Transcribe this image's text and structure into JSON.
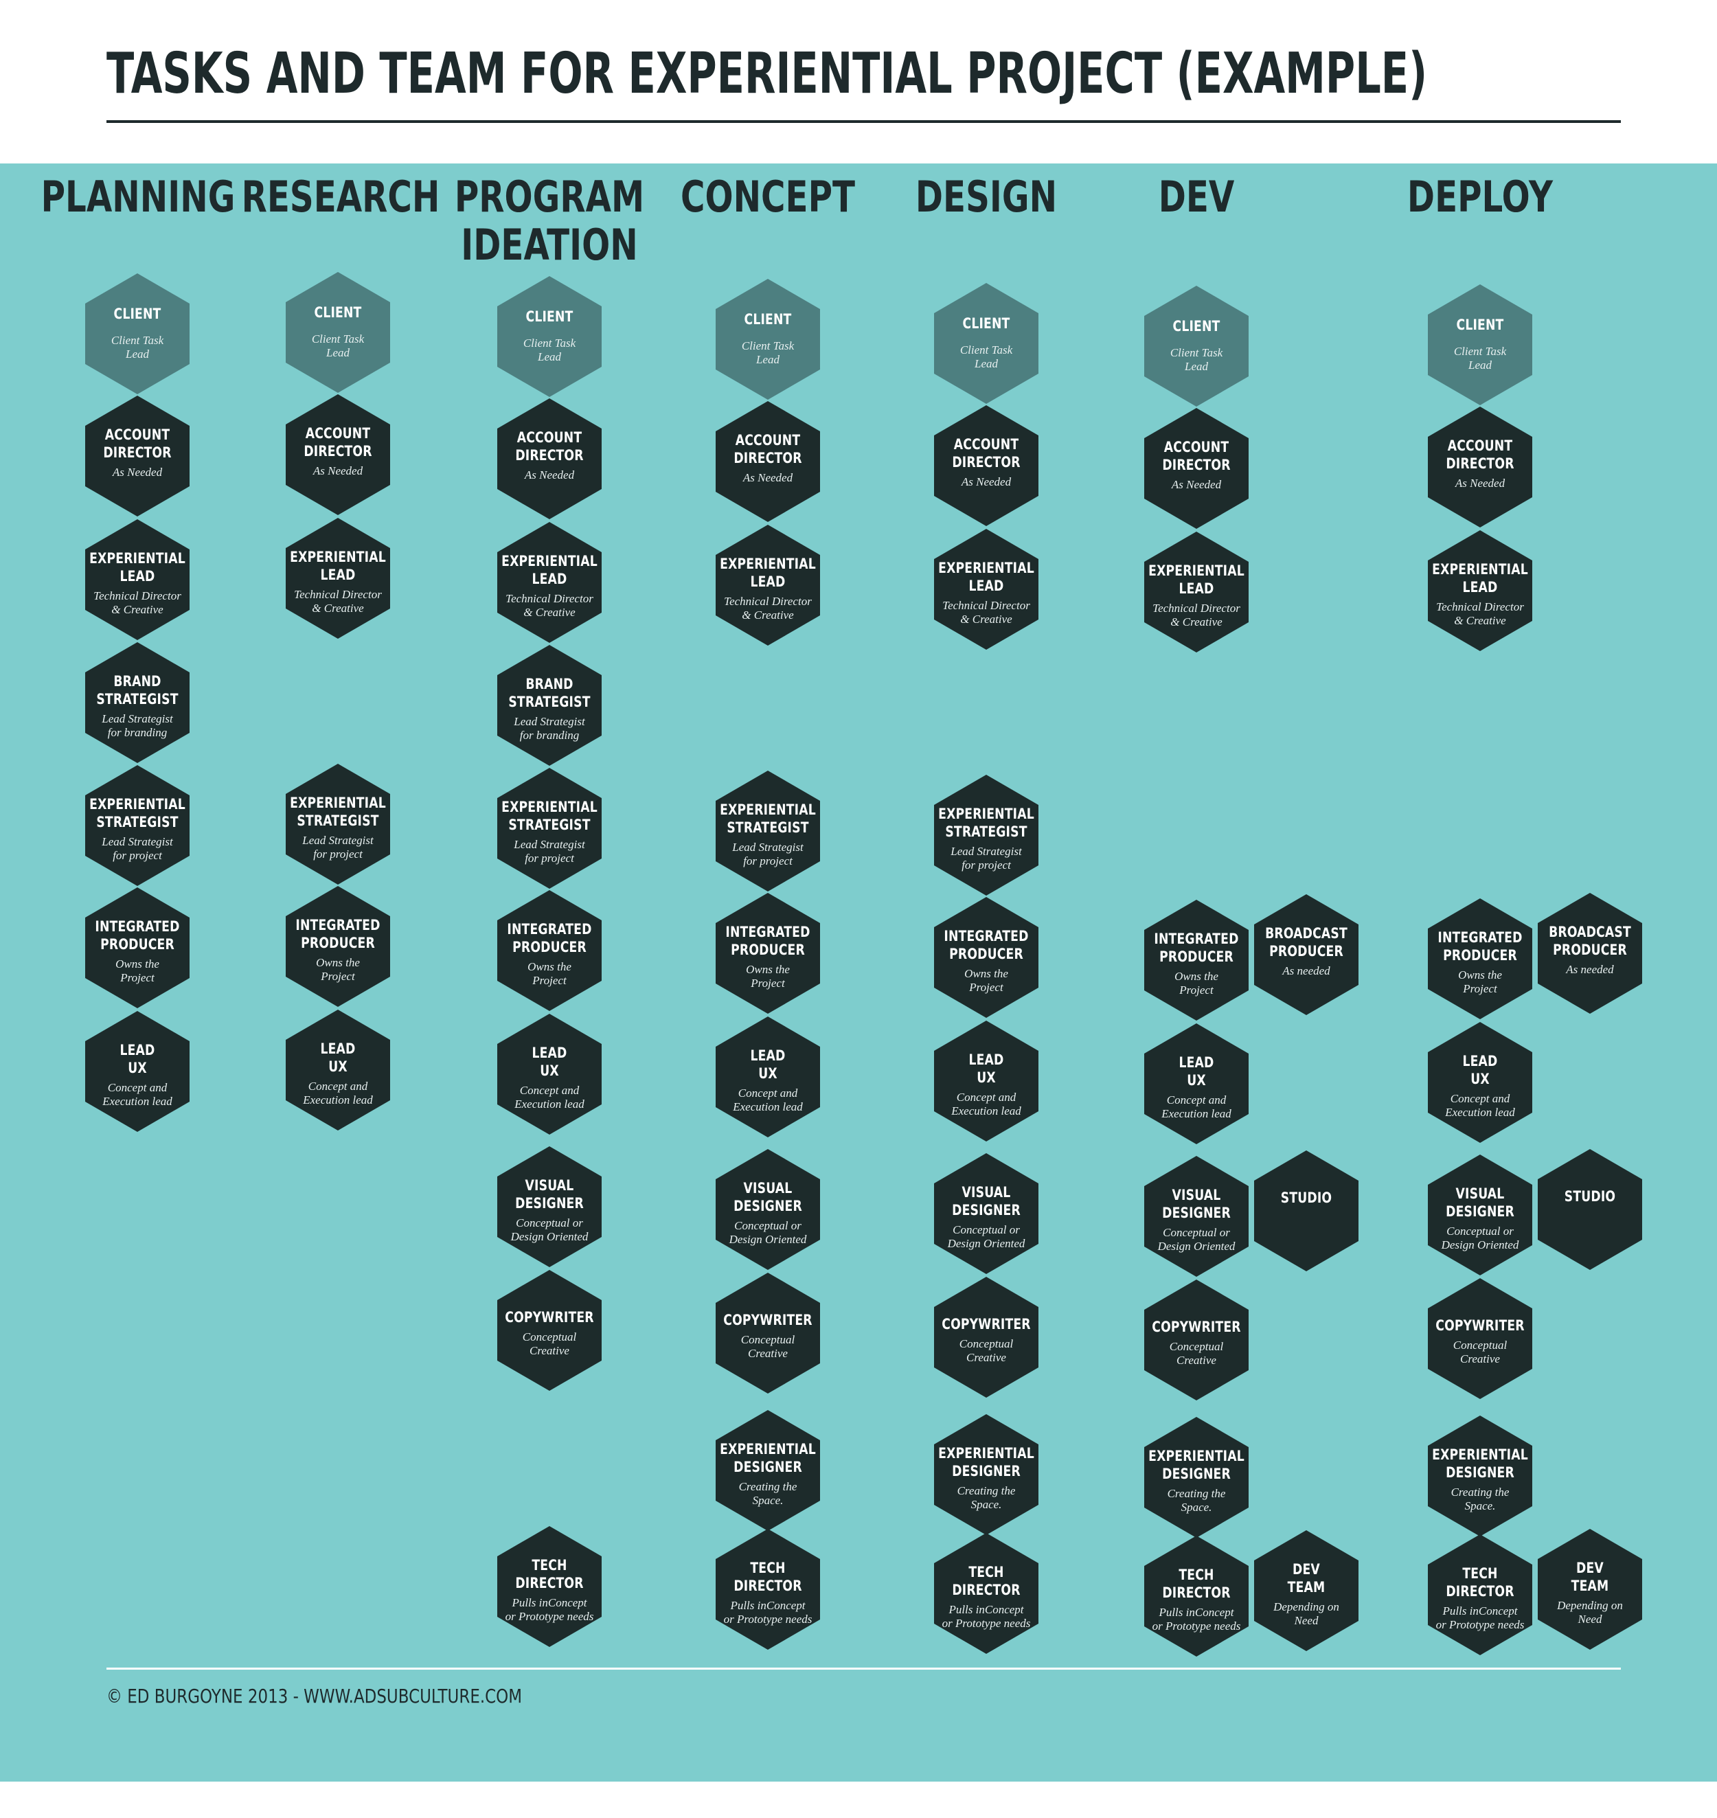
{
  "title": "TASKS AND TEAM FOR EXPERIENTIAL PROJECT (EXAMPLE)",
  "footer": {
    "credit": "© ED BURGOYNE 2013 - WWW.ADSUBCULTURE.COM"
  },
  "colors": {
    "panel": "#7ecdcd",
    "client_hex": "#4d7f80",
    "team_hex": "#1d2b2b",
    "text_dark": "#1e2a2c"
  },
  "columns": [
    {
      "name": "PLANNING",
      "roles": [
        {
          "role": "CLIENT",
          "note": "Client Task\nLead",
          "client": true
        },
        {
          "role": "ACCOUNT\nDIRECTOR",
          "note": "As Needed"
        },
        {
          "role": "EXPERIENTIAL\nLEAD",
          "note": "Technical Director\n& Creative"
        },
        {
          "role": "BRAND\nSTRATEGIST",
          "note": "Lead Strategist\nfor branding"
        },
        {
          "role": "EXPERIENTIAL\nSTRATEGIST",
          "note": "Lead Strategist\nfor project"
        },
        {
          "role": "INTEGRATED\nPRODUCER",
          "note": "Owns the\nProject"
        },
        {
          "role": "LEAD\nUX",
          "note": "Concept and\nExecution lead"
        }
      ]
    },
    {
      "name": "RESEARCH",
      "roles": [
        {
          "role": "CLIENT",
          "note": "Client Task\nLead",
          "client": true
        },
        {
          "role": "ACCOUNT\nDIRECTOR",
          "note": "As Needed"
        },
        {
          "role": "EXPERIENTIAL\nLEAD",
          "note": "Technical Director\n& Creative"
        },
        {
          "role": "EXPERIENTIAL\nSTRATEGIST",
          "note": "Lead Strategist\nfor project"
        },
        {
          "role": "INTEGRATED\nPRODUCER",
          "note": "Owns the\nProject"
        },
        {
          "role": "LEAD\nUX",
          "note": "Concept and\nExecution lead"
        }
      ]
    },
    {
      "name": "PROGRAM\nIDEATION",
      "roles": [
        {
          "role": "CLIENT",
          "note": "Client Task\nLead",
          "client": true
        },
        {
          "role": "ACCOUNT\nDIRECTOR",
          "note": "As Needed"
        },
        {
          "role": "EXPERIENTIAL\nLEAD",
          "note": "Technical Director\n& Creative"
        },
        {
          "role": "BRAND\nSTRATEGIST",
          "note": "Lead Strategist\nfor branding"
        },
        {
          "role": "EXPERIENTIAL\nSTRATEGIST",
          "note": "Lead Strategist\nfor project"
        },
        {
          "role": "INTEGRATED\nPRODUCER",
          "note": "Owns the\nProject"
        },
        {
          "role": "LEAD\nUX",
          "note": "Concept and\nExecution lead"
        },
        {
          "role": "VISUAL\nDESIGNER",
          "note": "Conceptual or\nDesign Oriented"
        },
        {
          "role": "COPYWRITER",
          "note": "Conceptual\nCreative"
        },
        {
          "role": "TECH\nDIRECTOR",
          "note": "Pulls inConcept\nor Prototype needs"
        }
      ]
    },
    {
      "name": "CONCEPT",
      "roles": [
        {
          "role": "CLIENT",
          "note": "Client Task\nLead",
          "client": true
        },
        {
          "role": "ACCOUNT\nDIRECTOR",
          "note": "As Needed"
        },
        {
          "role": "EXPERIENTIAL\nLEAD",
          "note": "Technical Director\n& Creative"
        },
        {
          "role": "EXPERIENTIAL\nSTRATEGIST",
          "note": "Lead Strategist\nfor project"
        },
        {
          "role": "INTEGRATED\nPRODUCER",
          "note": "Owns the\nProject"
        },
        {
          "role": "LEAD\nUX",
          "note": "Concept and\nExecution lead"
        },
        {
          "role": "VISUAL\nDESIGNER",
          "note": "Conceptual or\nDesign Oriented"
        },
        {
          "role": "COPYWRITER",
          "note": "Conceptual\nCreative"
        },
        {
          "role": "EXPERIENTIAL\nDESIGNER",
          "note": "Creating the\nSpace."
        },
        {
          "role": "TECH\nDIRECTOR",
          "note": "Pulls inConcept\nor Prototype needs"
        }
      ]
    },
    {
      "name": "DESIGN",
      "roles": [
        {
          "role": "CLIENT",
          "note": "Client Task\nLead",
          "client": true
        },
        {
          "role": "ACCOUNT\nDIRECTOR",
          "note": "As Needed"
        },
        {
          "role": "EXPERIENTIAL\nLEAD",
          "note": "Technical Director\n& Creative"
        },
        {
          "role": "EXPERIENTIAL\nSTRATEGIST",
          "note": "Lead Strategist\nfor project"
        },
        {
          "role": "INTEGRATED\nPRODUCER",
          "note": "Owns the\nProject"
        },
        {
          "role": "LEAD\nUX",
          "note": "Concept and\nExecution lead"
        },
        {
          "role": "VISUAL\nDESIGNER",
          "note": "Conceptual or\nDesign Oriented"
        },
        {
          "role": "COPYWRITER",
          "note": "Conceptual\nCreative"
        },
        {
          "role": "EXPERIENTIAL\nDESIGNER",
          "note": "Creating the\nSpace."
        },
        {
          "role": "TECH\nDIRECTOR",
          "note": "Pulls inConcept\nor Prototype needs"
        }
      ]
    },
    {
      "name": "DEV",
      "roles": [
        {
          "role": "CLIENT",
          "note": "Client Task\nLead",
          "client": true
        },
        {
          "role": "ACCOUNT\nDIRECTOR",
          "note": "As Needed"
        },
        {
          "role": "EXPERIENTIAL\nLEAD",
          "note": "Technical Director\n& Creative"
        },
        {
          "role": "INTEGRATED\nPRODUCER",
          "note": "Owns the\nProject"
        },
        {
          "role": "BROADCAST\nPRODUCER",
          "note": "As needed"
        },
        {
          "role": "LEAD\nUX",
          "note": "Concept and\nExecution lead"
        },
        {
          "role": "VISUAL\nDESIGNER",
          "note": "Conceptual or\nDesign Oriented"
        },
        {
          "role": "STUDIO",
          "note": ""
        },
        {
          "role": "COPYWRITER",
          "note": "Conceptual\nCreative"
        },
        {
          "role": "EXPERIENTIAL\nDESIGNER",
          "note": "Creating the\nSpace."
        },
        {
          "role": "TECH\nDIRECTOR",
          "note": "Pulls inConcept\nor Prototype needs"
        },
        {
          "role": "DEV\nTEAM",
          "note": "Depending on\nNeed"
        }
      ]
    },
    {
      "name": "DEPLOY",
      "roles": [
        {
          "role": "CLIENT",
          "note": "Client Task\nLead",
          "client": true
        },
        {
          "role": "ACCOUNT\nDIRECTOR",
          "note": "As Needed"
        },
        {
          "role": "EXPERIENTIAL\nLEAD",
          "note": "Technical Director\n& Creative"
        },
        {
          "role": "INTEGRATED\nPRODUCER",
          "note": "Owns the\nProject"
        },
        {
          "role": "BROADCAST\nPRODUCER",
          "note": "As needed"
        },
        {
          "role": "LEAD\nUX",
          "note": "Concept and\nExecution lead"
        },
        {
          "role": "VISUAL\nDESIGNER",
          "note": "Conceptual or\nDesign Oriented"
        },
        {
          "role": "STUDIO",
          "note": ""
        },
        {
          "role": "COPYWRITER",
          "note": "Conceptual\nCreative"
        },
        {
          "role": "EXPERIENTIAL\nDESIGNER",
          "note": "Creating the\nSpace."
        },
        {
          "role": "TECH\nDIRECTOR",
          "note": "Pulls inConcept\nor Prototype needs"
        },
        {
          "role": "DEV\nTEAM",
          "note": "Depending on\nNeed"
        }
      ]
    }
  ]
}
